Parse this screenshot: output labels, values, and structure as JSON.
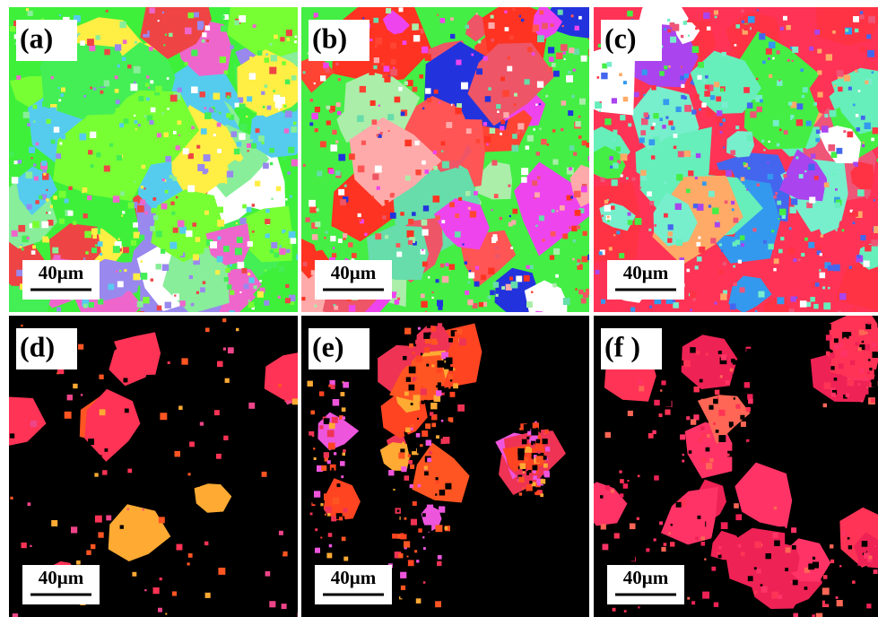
{
  "panels": [
    {
      "label": "(a)",
      "scale": "40μm"
    },
    {
      "label": "(b)",
      "scale": "40μm"
    },
    {
      "label": "(c)",
      "scale": "40μm"
    },
    {
      "label": "(d)",
      "scale": "40μm"
    },
    {
      "label": "(e)",
      "scale": "40μm"
    },
    {
      "label": "(f )",
      "scale": "40μm"
    }
  ]
}
